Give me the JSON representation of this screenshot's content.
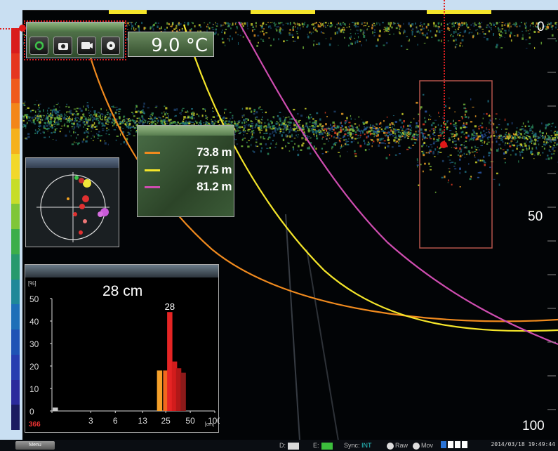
{
  "colors": {
    "palette": [
      "#d91c1c",
      "#e5361f",
      "#ef5a1c",
      "#f3861a",
      "#f5b11c",
      "#f2d82a",
      "#c7dd29",
      "#7fc638",
      "#3cae4a",
      "#27996d",
      "#1f8899",
      "#1e6fb8",
      "#1f53b5",
      "#273db0",
      "#2b2a9c",
      "#1b1b60"
    ],
    "range_colors": [
      "#f08a1e",
      "#f4e52a",
      "#cf4db0"
    ]
  },
  "toolbar": {
    "icons": [
      "refresh-icon",
      "camera-icon",
      "record-icon",
      "disc-icon"
    ]
  },
  "temperature": {
    "value": "9.0 °C"
  },
  "ranges": [
    {
      "value": "73.8 m"
    },
    {
      "value": "77.5 m"
    },
    {
      "value": "81.2 m"
    }
  ],
  "depth_scale": {
    "top": "0",
    "mid": "50",
    "bottom": "100"
  },
  "histogram": {
    "size": "28 cm",
    "peak_label": "28",
    "count": "366",
    "y_unit": "[%]",
    "x_unit": "[cm]"
  },
  "chart_data": {
    "type": "bar",
    "title": "28 cm",
    "y_ticks": [
      "50",
      "40",
      "30",
      "20",
      "10",
      "0"
    ],
    "x_ticks": [
      "1",
      "3",
      "6",
      "13",
      "25",
      "50",
      "100"
    ],
    "ylim": [
      0,
      50
    ],
    "bins": [
      {
        "x": 1.1,
        "value": 1.5,
        "color": "#cccccc"
      },
      {
        "x": 21,
        "value": 18,
        "color": "#f4a02a"
      },
      {
        "x": 25,
        "value": 18,
        "color": "#f0681e"
      },
      {
        "x": 28,
        "value": 44,
        "color": "#e52424"
      },
      {
        "x": 32,
        "value": 22,
        "color": "#d21c1c"
      },
      {
        "x": 36,
        "value": 19,
        "color": "#b01818"
      },
      {
        "x": 41,
        "value": 17,
        "color": "#8c1a1a"
      }
    ]
  },
  "status": {
    "menu_label": "Menu",
    "d_label": "D:",
    "e_label": "E:",
    "sync_label": "Sync:",
    "sync_value": "INT",
    "raw_label": "Raw",
    "mov_label": "Mov",
    "datetime": "2014/03/18 19:49:44"
  }
}
